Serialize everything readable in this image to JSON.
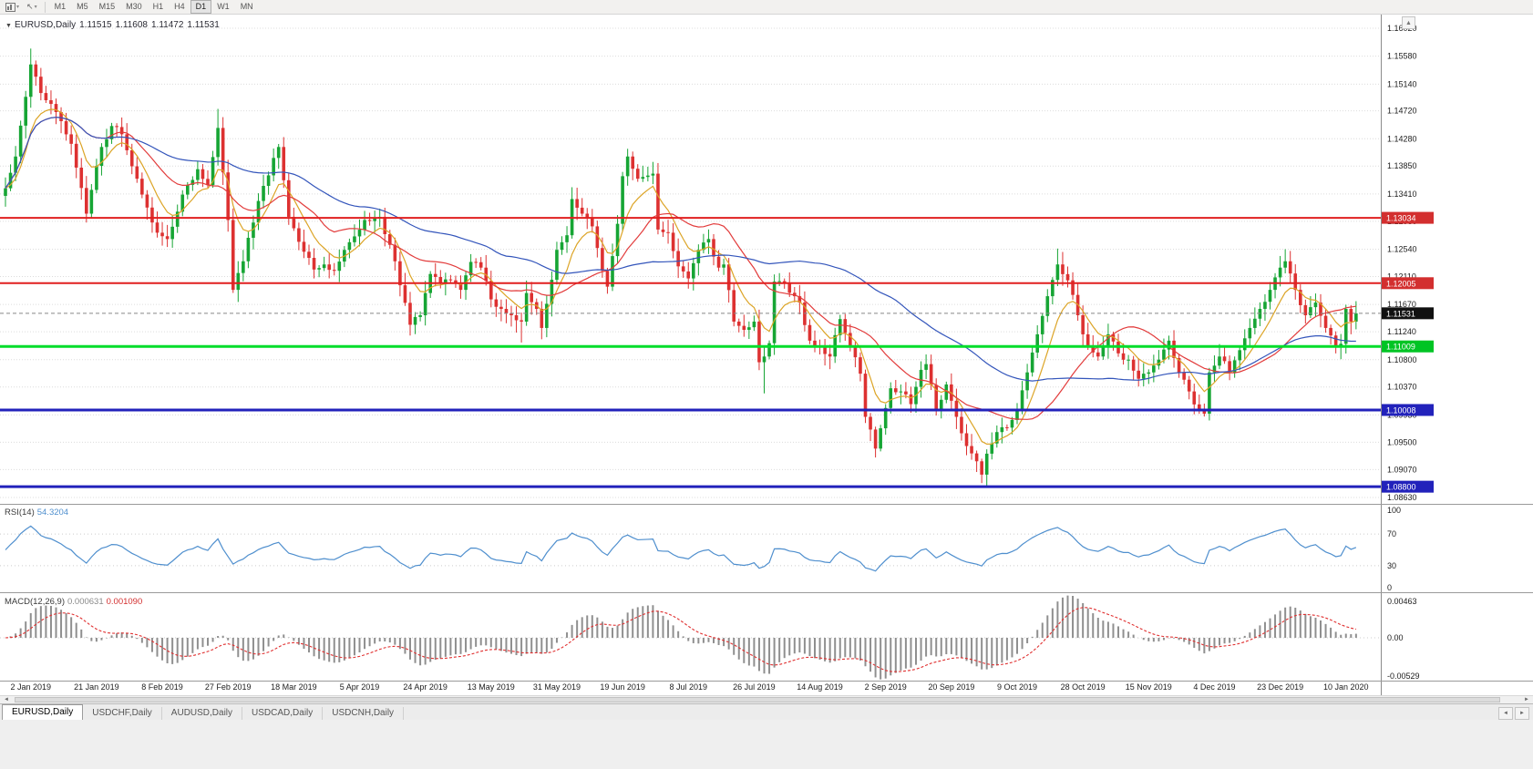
{
  "toolbar": {
    "timeframes": [
      "M1",
      "M5",
      "M15",
      "M30",
      "H1",
      "H4",
      "D1",
      "W1",
      "MN"
    ],
    "active_timeframe": "D1"
  },
  "icons": {
    "dropdown": "▼",
    "caret": "▾",
    "cursor": "↖",
    "scroll_up": "▲",
    "scroll_left": "◄",
    "scroll_right": "►"
  },
  "header": {
    "symbol": "EURUSD,Daily",
    "open": "1.11515",
    "high": "1.11608",
    "low": "1.11472",
    "close": "1.11531"
  },
  "rsi_panel": {
    "name": "RSI(14)",
    "value": "54.3204"
  },
  "macd_panel": {
    "name": "MACD(12,26,9)",
    "value1": "0.000631",
    "value2": "0.001090"
  },
  "bottom": {
    "tabs": [
      {
        "label": "EURUSD,Daily",
        "active": true
      },
      {
        "label": "USDCHF,Daily",
        "active": false
      },
      {
        "label": "AUDUSD,Daily",
        "active": false
      },
      {
        "label": "USDCAD,Daily",
        "active": false
      },
      {
        "label": "USDCNH,Daily",
        "active": false
      }
    ]
  },
  "chart_data": {
    "type": "candlestick",
    "symbol": "EURUSD",
    "timeframe": "Daily",
    "current_ohlc": {
      "open": 1.11515,
      "high": 1.11608,
      "low": 1.11472,
      "close": 1.11531
    },
    "y_axis": {
      "min": 1.0863,
      "max": 1.1602,
      "tick_labels": [
        "1.16020",
        "1.15580",
        "1.15140",
        "1.14720",
        "1.14280",
        "1.13850",
        "1.13410",
        "1.12980",
        "1.12540",
        "1.12110",
        "1.11670",
        "1.11240",
        "1.10800",
        "1.10370",
        "1.09930",
        "1.09500",
        "1.09070",
        "1.08630"
      ]
    },
    "x_axis": {
      "tick_labels": [
        "2 Jan 2019",
        "21 Jan 2019",
        "8 Feb 2019",
        "27 Feb 2019",
        "18 Mar 2019",
        "5 Apr 2019",
        "24 Apr 2019",
        "13 May 2019",
        "31 May 2019",
        "19 Jun 2019",
        "8 Jul 2019",
        "26 Jul 2019",
        "14 Aug 2019",
        "2 Sep 2019",
        "20 Sep 2019",
        "9 Oct 2019",
        "28 Oct 2019",
        "15 Nov 2019",
        "4 Dec 2019",
        "23 Dec 2019",
        "10 Jan 2020"
      ]
    },
    "n_bars": 268,
    "approx_close_path": [
      [
        0,
        1.135
      ],
      [
        2,
        1.14
      ],
      [
        5,
        1.1545
      ],
      [
        7,
        1.15
      ],
      [
        10,
        1.147
      ],
      [
        13,
        1.142
      ],
      [
        16,
        1.131
      ],
      [
        19,
        1.1415
      ],
      [
        21,
        1.1448
      ],
      [
        23,
        1.1435
      ],
      [
        26,
        1.1365
      ],
      [
        30,
        1.128
      ],
      [
        32,
        1.127
      ],
      [
        35,
        1.134
      ],
      [
        38,
        1.138
      ],
      [
        40,
        1.1355
      ],
      [
        42,
        1.1445
      ],
      [
        44,
        1.13
      ],
      [
        45,
        1.119
      ],
      [
        47,
        1.1235
      ],
      [
        50,
        1.133
      ],
      [
        54,
        1.1415
      ],
      [
        56,
        1.1305
      ],
      [
        59,
        1.125
      ],
      [
        61,
        1.1222
      ],
      [
        63,
        1.123
      ],
      [
        65,
        1.122
      ],
      [
        68,
        1.1265
      ],
      [
        71,
        1.13
      ],
      [
        74,
        1.1305
      ],
      [
        77,
        1.1235
      ],
      [
        80,
        1.1135
      ],
      [
        82,
        1.115
      ],
      [
        84,
        1.1215
      ],
      [
        86,
        1.12
      ],
      [
        88,
        1.1205
      ],
      [
        90,
        1.119
      ],
      [
        92,
        1.1234
      ],
      [
        94,
        1.1225
      ],
      [
        96,
        1.1175
      ],
      [
        98,
        1.116
      ],
      [
        100,
        1.115
      ],
      [
        102,
        1.114
      ],
      [
        103,
        1.1185
      ],
      [
        105,
        1.116
      ],
      [
        106,
        1.113
      ],
      [
        107,
        1.1168
      ],
      [
        109,
        1.1253
      ],
      [
        111,
        1.1276
      ],
      [
        112,
        1.1333
      ],
      [
        114,
        1.131
      ],
      [
        116,
        1.129
      ],
      [
        118,
        1.122
      ],
      [
        119,
        1.1195
      ],
      [
        121,
        1.1294
      ],
      [
        122,
        1.1369
      ],
      [
        123,
        1.14
      ],
      [
        125,
        1.1365
      ],
      [
        127,
        1.137
      ],
      [
        128,
        1.1373
      ],
      [
        129,
        1.1285
      ],
      [
        131,
        1.128
      ],
      [
        133,
        1.1227
      ],
      [
        135,
        1.1208
      ],
      [
        137,
        1.1253
      ],
      [
        139,
        1.127
      ],
      [
        141,
        1.1225
      ],
      [
        142,
        1.123
      ],
      [
        144,
        1.114
      ],
      [
        146,
        1.1127
      ],
      [
        148,
        1.114
      ],
      [
        149,
        1.1076
      ],
      [
        150,
        1.1085
      ],
      [
        151,
        1.1106
      ],
      [
        152,
        1.1203
      ],
      [
        154,
        1.12
      ],
      [
        156,
        1.118
      ],
      [
        157,
        1.117
      ],
      [
        159,
        1.111
      ],
      [
        161,
        1.11
      ],
      [
        163,
        1.1085
      ],
      [
        165,
        1.1144
      ],
      [
        167,
        1.11
      ],
      [
        169,
        1.1058
      ],
      [
        170,
        1.099
      ],
      [
        171,
        1.097
      ],
      [
        172,
        1.094
      ],
      [
        173,
        1.0972
      ],
      [
        175,
        1.1035
      ],
      [
        177,
        1.103
      ],
      [
        179,
        1.101
      ],
      [
        181,
        1.1064
      ],
      [
        182,
        1.1073
      ],
      [
        184,
        1.1
      ],
      [
        186,
        1.1041
      ],
      [
        188,
        1.099
      ],
      [
        190,
        1.0944
      ],
      [
        192,
        1.092
      ],
      [
        193,
        1.0899
      ],
      [
        194,
        1.0932
      ],
      [
        196,
        1.0966
      ],
      [
        198,
        1.0973
      ],
      [
        200,
        1.1
      ],
      [
        202,
        1.106
      ],
      [
        204,
        1.112
      ],
      [
        206,
        1.118
      ],
      [
        208,
        1.123
      ],
      [
        210,
        1.1205
      ],
      [
        212,
        1.115
      ],
      [
        214,
        1.11
      ],
      [
        216,
        1.1085
      ],
      [
        218,
        1.112
      ],
      [
        220,
        1.109
      ],
      [
        222,
        1.108
      ],
      [
        224,
        1.105
      ],
      [
        226,
        1.106
      ],
      [
        228,
        1.108
      ],
      [
        230,
        1.111
      ],
      [
        232,
        1.106
      ],
      [
        234,
        1.103
      ],
      [
        236,
        1.1
      ],
      [
        237,
        1.0995
      ],
      [
        238,
        1.106
      ],
      [
        240,
        1.1085
      ],
      [
        242,
        1.106
      ],
      [
        244,
        1.1095
      ],
      [
        246,
        1.113
      ],
      [
        248,
        1.116
      ],
      [
        250,
        1.119
      ],
      [
        252,
        1.1225
      ],
      [
        253,
        1.1235
      ],
      [
        255,
        1.119
      ],
      [
        257,
        1.115
      ],
      [
        259,
        1.117
      ],
      [
        261,
        1.113
      ],
      [
        263,
        1.11
      ],
      [
        264,
        1.1105
      ],
      [
        265,
        1.116
      ],
      [
        266,
        1.114
      ],
      [
        267,
        1.1153
      ]
    ],
    "wick_extremes": [
      {
        "i": 5,
        "high": 1.157
      },
      {
        "i": 42,
        "high": 1.1475
      },
      {
        "i": 102,
        "low": 1.1107
      },
      {
        "i": 150,
        "low": 1.1027
      },
      {
        "i": 172,
        "low": 1.0926
      },
      {
        "i": 194,
        "low": 1.0879
      },
      {
        "i": 208,
        "high": 1.1255
      },
      {
        "i": 253,
        "high": 1.1254
      }
    ],
    "horizontal_levels": [
      {
        "label": "1.13034",
        "value": 1.13034,
        "color": "#e01f1f",
        "width": 2,
        "tag_bg": "#d32f2f"
      },
      {
        "label": "1.12005",
        "value": 1.12005,
        "color": "#e01f1f",
        "width": 2,
        "tag_bg": "#d32f2f"
      },
      {
        "label": "1.11009",
        "value": 1.11009,
        "color": "#00dd2a",
        "width": 3,
        "tag_bg": "#00c424"
      },
      {
        "label": "1.10008",
        "value": 1.10008,
        "color": "#2222bb",
        "width": 3,
        "tag_bg": "#2222bb"
      },
      {
        "label": "1.08800",
        "value": 1.088,
        "color": "#2222bb",
        "width": 3,
        "tag_bg": "#2222bb"
      }
    ],
    "current_price_tag": {
      "label": "1.11531",
      "bg": "#111111"
    },
    "candle_colors": {
      "up": "#16a534",
      "down": "#dd3131"
    },
    "moving_averages": [
      {
        "period": 8,
        "method": "ema",
        "color": "#dca426"
      },
      {
        "period": 21,
        "method": "sma",
        "color": "#e23b3b"
      },
      {
        "period": 55,
        "method": "sma",
        "color": "#3355bb"
      }
    ],
    "indicators": [
      {
        "name": "RSI",
        "period": 14,
        "current": 54.3204,
        "levels": [
          100,
          70,
          30,
          0
        ],
        "color": "#4f8fce"
      },
      {
        "name": "MACD",
        "fast": 12,
        "slow": 26,
        "signal": 9,
        "current_macd": 0.000631,
        "current_signal": 0.00109,
        "axis_labels": [
          "0.00463",
          "0.00",
          "-0.00529"
        ],
        "histogram_color": "#8f8f8f",
        "signal_color": "#e03030"
      }
    ]
  }
}
